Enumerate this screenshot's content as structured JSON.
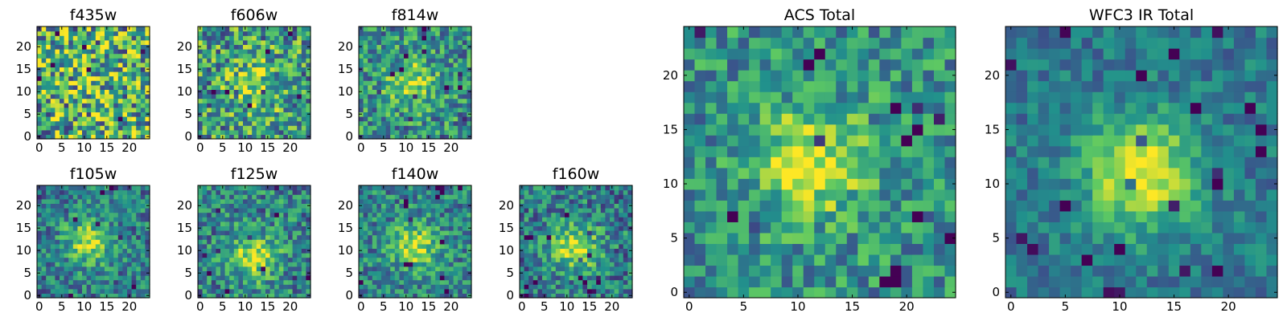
{
  "figure": {
    "background": "#ffffff"
  },
  "colormap": {
    "name": "viridis",
    "stops": [
      "#440154",
      "#3b528b",
      "#21918c",
      "#5ec962",
      "#fde725"
    ]
  },
  "chart_data": [
    {
      "id": "f435w",
      "type": "heatmap",
      "title": "f435w",
      "grid_size": 25,
      "xlim": [
        0,
        24
      ],
      "ylim": [
        0,
        24
      ],
      "xticks": [
        "0",
        "5",
        "10",
        "15",
        "20"
      ],
      "yticks": [
        "0",
        "5",
        "10",
        "15",
        "20"
      ],
      "peak": [
        12,
        12
      ],
      "peak_strength": 0.05,
      "noise_level": 0.9,
      "base_level": 0.62,
      "seed": 11,
      "grid": false,
      "legend": "none"
    },
    {
      "id": "f606w",
      "type": "heatmap",
      "title": "f606w",
      "grid_size": 25,
      "xlim": [
        0,
        24
      ],
      "ylim": [
        0,
        24
      ],
      "xticks": [
        "0",
        "5",
        "10",
        "15",
        "20"
      ],
      "yticks": [
        "0",
        "5",
        "10",
        "15",
        "20"
      ],
      "peak": [
        12,
        11
      ],
      "peak_strength": 0.3,
      "noise_level": 0.75,
      "base_level": 0.55,
      "seed": 23,
      "grid": false,
      "legend": "none"
    },
    {
      "id": "f814w",
      "type": "heatmap",
      "title": "f814w",
      "grid_size": 25,
      "xlim": [
        0,
        24
      ],
      "ylim": [
        0,
        24
      ],
      "xticks": [
        "0",
        "5",
        "10",
        "15",
        "20"
      ],
      "yticks": [
        "0",
        "5",
        "10",
        "15",
        "20"
      ],
      "peak": [
        11,
        12
      ],
      "peak_strength": 0.38,
      "noise_level": 0.6,
      "base_level": 0.5,
      "seed": 37,
      "grid": false,
      "legend": "none"
    },
    {
      "id": "f105w",
      "type": "heatmap",
      "title": "f105w",
      "grid_size": 25,
      "xlim": [
        0,
        24
      ],
      "ylim": [
        0,
        24
      ],
      "xticks": [
        "0",
        "5",
        "10",
        "15",
        "20"
      ],
      "yticks": [
        "0",
        "5",
        "10",
        "15",
        "20"
      ],
      "peak": [
        11,
        12
      ],
      "peak_strength": 0.45,
      "noise_level": 0.5,
      "base_level": 0.42,
      "seed": 41,
      "grid": false,
      "legend": "none"
    },
    {
      "id": "f125w",
      "type": "heatmap",
      "title": "f125w",
      "grid_size": 25,
      "xlim": [
        0,
        24
      ],
      "ylim": [
        0,
        24
      ],
      "xticks": [
        "0",
        "5",
        "10",
        "15",
        "20"
      ],
      "yticks": [
        "0",
        "5",
        "10",
        "15",
        "20"
      ],
      "peak": [
        12,
        9
      ],
      "peak_strength": 0.45,
      "noise_level": 0.55,
      "base_level": 0.45,
      "seed": 53,
      "grid": false,
      "legend": "none"
    },
    {
      "id": "f140w",
      "type": "heatmap",
      "title": "f140w",
      "grid_size": 25,
      "xlim": [
        0,
        24
      ],
      "ylim": [
        0,
        24
      ],
      "xticks": [
        "0",
        "5",
        "10",
        "15",
        "20"
      ],
      "yticks": [
        "0",
        "5",
        "10",
        "15",
        "20"
      ],
      "peak": [
        12,
        11
      ],
      "peak_strength": 0.45,
      "noise_level": 0.5,
      "base_level": 0.45,
      "seed": 67,
      "grid": false,
      "legend": "none"
    },
    {
      "id": "f160w",
      "type": "heatmap",
      "title": "f160w",
      "grid_size": 25,
      "xlim": [
        0,
        24
      ],
      "ylim": [
        0,
        24
      ],
      "xticks": [
        "0",
        "5",
        "10",
        "15",
        "20"
      ],
      "yticks": [
        "0",
        "5",
        "10",
        "15",
        "20"
      ],
      "peak": [
        12,
        11
      ],
      "peak_strength": 0.5,
      "noise_level": 0.55,
      "base_level": 0.42,
      "seed": 79,
      "grid": false,
      "legend": "none"
    },
    {
      "id": "acs_total",
      "type": "heatmap",
      "title": "ACS Total",
      "grid_size": 25,
      "xlim": [
        0,
        24
      ],
      "ylim": [
        0,
        24
      ],
      "xticks": [
        "0",
        "5",
        "10",
        "15",
        "20"
      ],
      "yticks": [
        "0",
        "5",
        "10",
        "15",
        "20"
      ],
      "peak": [
        11,
        12
      ],
      "peak_strength": 0.45,
      "noise_level": 0.5,
      "base_level": 0.5,
      "seed": 97,
      "grid": false,
      "legend": "none"
    },
    {
      "id": "wfc3_ir_total",
      "type": "heatmap",
      "title": "WFC3 IR Total",
      "grid_size": 25,
      "xlim": [
        0,
        24
      ],
      "ylim": [
        0,
        24
      ],
      "xticks": [
        "0",
        "5",
        "10",
        "15",
        "20"
      ],
      "yticks": [
        "0",
        "5",
        "10",
        "15",
        "20"
      ],
      "peak": [
        12,
        11
      ],
      "peak_strength": 0.6,
      "noise_level": 0.32,
      "base_level": 0.4,
      "seed": 131,
      "grid": false,
      "legend": "none"
    }
  ]
}
